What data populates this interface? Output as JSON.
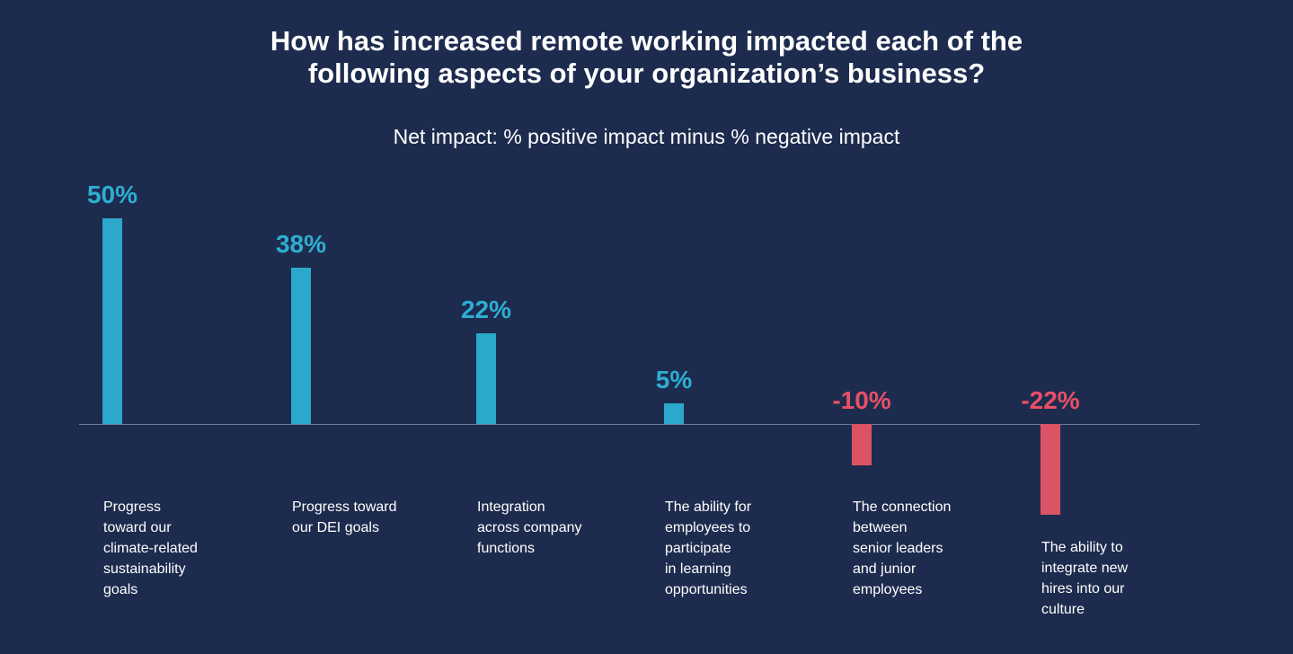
{
  "header": {
    "title": "How has increased remote working impacted each of the\nfollowing aspects of your organization’s business?",
    "subtitle": "Net impact: % positive impact minus % negative impact"
  },
  "chart_data": {
    "type": "bar",
    "title": "How has increased remote working impacted each of the following aspects of your organization’s business?",
    "subtitle": "Net impact: % positive impact minus % negative impact",
    "categories": [
      "Progress toward our climate-related sustainability goals",
      "Progress toward our DEI goals",
      "Integration across company functions",
      "The ability for employees to participate in learning opportunities",
      "The connection between senior leaders and junior employees",
      "The ability to integrate new hires into our culture"
    ],
    "values": [
      50,
      38,
      22,
      5,
      -10,
      -22
    ],
    "value_labels": [
      "50%",
      "38%",
      "22%",
      "5%",
      "-10%",
      "-22%"
    ],
    "label_lines": [
      [
        "Progress",
        "toward our",
        "climate-related",
        "sustainability",
        "goals"
      ],
      [
        "Progress toward",
        "our DEI goals"
      ],
      [
        "Integration",
        "across company",
        "functions"
      ],
      [
        "The ability for",
        "employees to",
        "participate",
        "in learning",
        "opportunities"
      ],
      [
        "The connection",
        "between",
        "senior leaders",
        "and junior",
        "employees"
      ],
      [
        "The ability to",
        "integrate new",
        "hires into our",
        "culture"
      ]
    ],
    "ylim": [
      -30,
      55
    ],
    "grid": false,
    "legend": false,
    "xlabel": "",
    "ylabel": "",
    "colors": {
      "background": "#1D2C4E",
      "positive": "#2BA8CB",
      "positive_label": "#2DAED3",
      "negative": "#DC5365",
      "negative_label": "#E84F66",
      "axis": "#7E88A2",
      "text": "#FFFFFF"
    }
  }
}
